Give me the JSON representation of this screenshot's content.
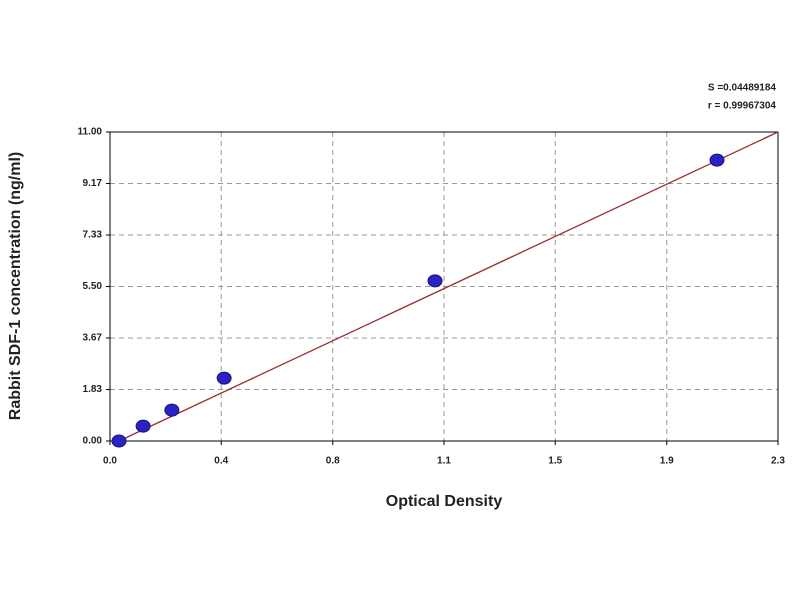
{
  "chart_data": {
    "type": "scatter",
    "x_label": "Optical Density",
    "y_label": "Rabbit SDF-1 concentration (ng/ml)",
    "annotations": [
      "S =0.04489184",
      "r = 0.99967304"
    ],
    "x": [
      0.031,
      0.114,
      0.213,
      0.393,
      1.119,
      2.09
    ],
    "values": [
      0,
      0.53,
      1.1,
      2.24,
      5.7,
      10.0
    ],
    "color": "#2a22c4",
    "fit": {
      "x": [
        0.031,
        2.3
      ],
      "values": [
        0,
        11
      ],
      "color": "#9b2b2b"
    },
    "xlim": [
      0,
      2.3
    ],
    "xticks": [
      {
        "value": 0,
        "label": "0.0"
      },
      {
        "value": 0.383,
        "label": "0.4"
      },
      {
        "value": 0.767,
        "label": "0.8"
      },
      {
        "value": 1.15,
        "label": "1.1"
      },
      {
        "value": 1.533,
        "label": "1.5"
      },
      {
        "value": 1.917,
        "label": "1.9"
      },
      2.3
    ],
    "ylim": [
      0,
      11
    ],
    "yticks": [
      {
        "value": 0,
        "label": "0.00"
      },
      {
        "value": 1.833,
        "label": "1.83"
      },
      {
        "value": 3.667,
        "label": "3.67"
      },
      {
        "value": 5.5,
        "label": "5.50"
      },
      {
        "value": 7.333,
        "label": "7.33"
      },
      {
        "value": 9.167,
        "label": "9.17"
      },
      {
        "value": 11,
        "label": "11.00"
      }
    ],
    "grid": true
  }
}
